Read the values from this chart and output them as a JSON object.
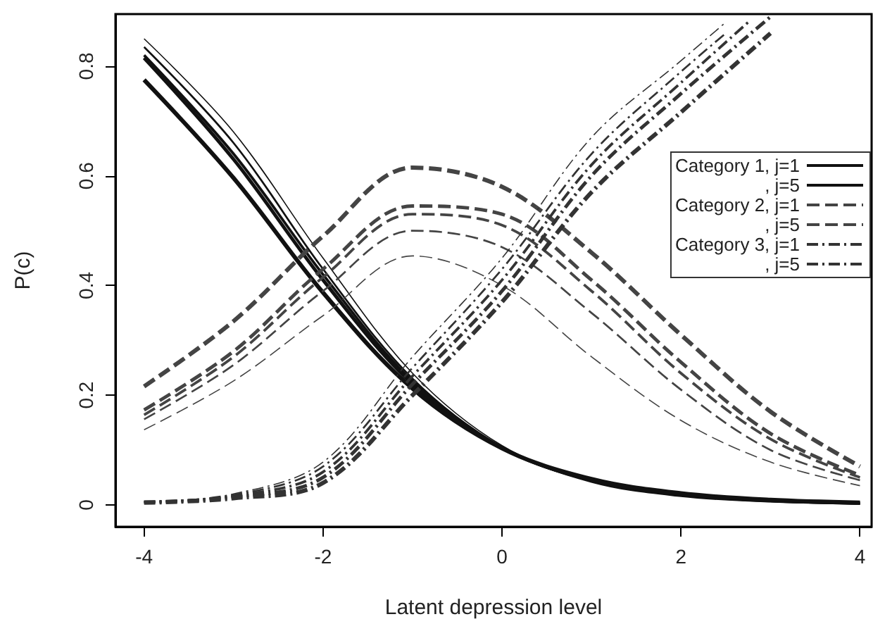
{
  "chart_data": {
    "type": "line",
    "xlabel": "Latent depression level",
    "ylabel": "P(c)",
    "x": [
      -4,
      -3,
      -2,
      -1,
      0,
      1,
      2,
      3,
      4
    ],
    "series": [
      {
        "name": "Category 1, j=1",
        "color": "#111111",
        "line_style": "solid",
        "values": [
          0.85,
          0.68,
          0.45,
          0.24,
          0.108,
          0.044,
          0.017,
          0.007,
          0.003
        ]
      },
      {
        "color": "#111111",
        "line_style": "solid",
        "values": [
          0.835,
          0.66,
          0.43,
          0.23,
          0.105,
          0.042,
          0.016,
          0.006,
          0.002
        ]
      },
      {
        "color": "#111111",
        "line_style": "solid",
        "values": [
          0.82,
          0.64,
          0.42,
          0.225,
          0.104,
          0.044,
          0.018,
          0.007,
          0.003
        ]
      },
      {
        "color": "#111111",
        "line_style": "solid",
        "values": [
          0.815,
          0.63,
          0.41,
          0.22,
          0.104,
          0.045,
          0.019,
          0.008,
          0.003
        ]
      },
      {
        "name": ", j=5",
        "color": "#111111",
        "line_style": "solid",
        "values": [
          0.775,
          0.596,
          0.387,
          0.212,
          0.103,
          0.047,
          0.021,
          0.009,
          0.004
        ]
      },
      {
        "name": "Category 2, j=1",
        "color": "#444444",
        "line_style": "dashed",
        "values": [
          0.137,
          0.226,
          0.345,
          0.454,
          0.4,
          0.27,
          0.154,
          0.078,
          0.035
        ]
      },
      {
        "color": "#444444",
        "line_style": "dashed",
        "values": [
          0.156,
          0.255,
          0.39,
          0.5,
          0.47,
          0.35,
          0.21,
          0.1,
          0.045
        ]
      },
      {
        "color": "#444444",
        "line_style": "dashed",
        "values": [
          0.164,
          0.27,
          0.415,
          0.53,
          0.51,
          0.39,
          0.24,
          0.12,
          0.05
        ]
      },
      {
        "color": "#444444",
        "line_style": "dashed",
        "values": [
          0.173,
          0.28,
          0.43,
          0.545,
          0.53,
          0.41,
          0.26,
          0.13,
          0.054
        ]
      },
      {
        "name": ", j=5",
        "color": "#444444",
        "line_style": "dashed",
        "values": [
          0.216,
          0.335,
          0.49,
          0.615,
          0.58,
          0.46,
          0.31,
          0.17,
          0.07
        ]
      },
      {
        "name": "Category 3, j=1",
        "color": "#333333",
        "line_style": "dashdot",
        "x": [
          -4,
          -3,
          -2,
          -1,
          0,
          1,
          2,
          2.5
        ],
        "values": [
          0.005,
          0.02,
          0.078,
          0.27,
          0.45,
          0.67,
          0.81,
          0.88
        ]
      },
      {
        "color": "#333333",
        "line_style": "dashdot",
        "x": [
          -4,
          -3,
          -2,
          -1,
          0,
          1,
          2,
          2.5
        ],
        "values": [
          0.005,
          0.018,
          0.07,
          0.25,
          0.43,
          0.64,
          0.79,
          0.86
        ]
      },
      {
        "color": "#333333",
        "line_style": "dashdot",
        "x": [
          -4,
          -3,
          -2,
          -1,
          0,
          1,
          2,
          2.75
        ],
        "values": [
          0.005,
          0.016,
          0.06,
          0.235,
          0.41,
          0.62,
          0.77,
          0.88
        ]
      },
      {
        "color": "#333333",
        "line_style": "dashdot",
        "x": [
          -4,
          -3,
          -2,
          -1,
          0,
          1,
          2,
          3
        ],
        "values": [
          0.005,
          0.014,
          0.05,
          0.22,
          0.39,
          0.6,
          0.75,
          0.89
        ]
      },
      {
        "name": ", j=5",
        "color": "#333333",
        "line_style": "dashdot",
        "x": [
          -4,
          -3,
          -2,
          -1,
          0,
          1,
          2,
          3
        ],
        "values": [
          0.004,
          0.012,
          0.04,
          0.2,
          0.37,
          0.57,
          0.716,
          0.86
        ]
      }
    ],
    "xlim": [
      -4.32,
      4.13
    ],
    "xticks": [
      -4,
      -2,
      0,
      2,
      4
    ],
    "ylim": [
      -0.04,
      0.895
    ],
    "yticks": [
      0,
      0.2,
      0.4,
      0.6,
      0.8
    ],
    "grid": false,
    "legend": "right",
    "marker": "none"
  }
}
